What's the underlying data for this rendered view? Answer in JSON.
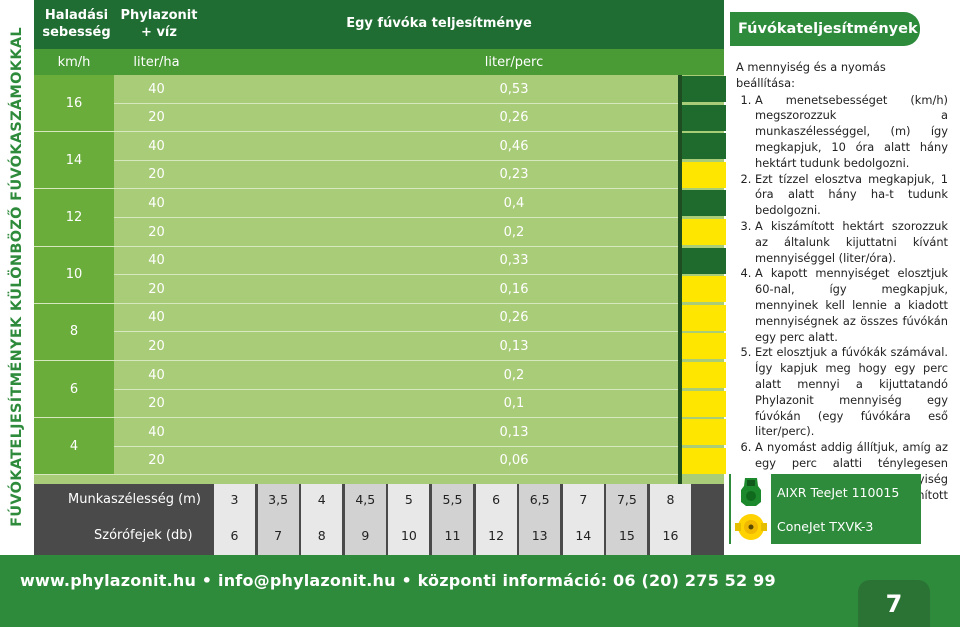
{
  "side_title": "FÚVÓKATELJESÍTMÉNYEK KÜLÖNBÖZŐ FÚVÓKASZÁMOKKAL",
  "header": {
    "col1": "Haladási sebesség",
    "col2": "Phylazonit + víz",
    "col3": "Egy fúvóka teljesítménye"
  },
  "units": {
    "speed": "km/h",
    "rate": "liter/ha",
    "flow": "liter/perc"
  },
  "groups": [
    {
      "speed": "16",
      "rows": [
        {
          "rate": "40",
          "flow": "0,53"
        },
        {
          "rate": "20",
          "flow": "0,26"
        }
      ]
    },
    {
      "speed": "14",
      "rows": [
        {
          "rate": "40",
          "flow": "0,46"
        },
        {
          "rate": "20",
          "flow": "0,23"
        }
      ]
    },
    {
      "speed": "12",
      "rows": [
        {
          "rate": "40",
          "flow": "0,4"
        },
        {
          "rate": "20",
          "flow": "0,2"
        }
      ]
    },
    {
      "speed": "10",
      "rows": [
        {
          "rate": "40",
          "flow": "0,33"
        },
        {
          "rate": "20",
          "flow": "0,16"
        }
      ]
    },
    {
      "speed": "8",
      "rows": [
        {
          "rate": "40",
          "flow": "0,26"
        },
        {
          "rate": "20",
          "flow": "0,13"
        }
      ]
    },
    {
      "speed": "6",
      "rows": [
        {
          "rate": "40",
          "flow": "0,2"
        },
        {
          "rate": "20",
          "flow": "0,1"
        }
      ]
    },
    {
      "speed": "4",
      "rows": [
        {
          "rate": "40",
          "flow": "0,13"
        },
        {
          "rate": "20",
          "flow": "0,06"
        }
      ]
    }
  ],
  "nozzle_indicator": [
    "green",
    "green",
    "green",
    "yellow",
    "green",
    "yellow",
    "green",
    "yellow",
    "yellow",
    "yellow",
    "yellow",
    "yellow",
    "yellow",
    "yellow"
  ],
  "colors": {
    "green_nozzle": "#1f6b2e",
    "yellow_nozzle": "#ffe600",
    "brand_green": "#2e8b3b"
  },
  "munkaszelesseg": {
    "label": "Munkaszélesség (m)",
    "values": [
      "3",
      "3,5",
      "4",
      "4,5",
      "5",
      "5,5",
      "6",
      "6,5",
      "7",
      "7,5",
      "8"
    ]
  },
  "szorofejek": {
    "label": "Szórófejek (db)",
    "values": [
      "6",
      "7",
      "8",
      "9",
      "10",
      "11",
      "12",
      "13",
      "14",
      "15",
      "16"
    ]
  },
  "right": {
    "title": "Fúvókateljesítmények",
    "intro": "A mennyiség és a nyomás beállítása:",
    "steps": [
      "A menetsebességet (km/h) megszorozzuk a munkaszélességgel, (m) így megkapjuk, 10 óra alatt hány hektárt tudunk bedolgozni.",
      "Ezt tízzel elosztva megkapjuk, 1 óra alatt hány ha-t tudunk bedolgozni.",
      "A kiszámított hektárt szorozzuk az általunk kijuttatni kívánt mennyiséggel (liter/óra).",
      "A kapott mennyiséget elosztjuk 60-nal, így megkapjuk, mennyinek kell lennie a kiadott mennyiségnek az összes fúvókán egy perc alatt.",
      "Ezt elosztjuk a fúvókák számával. Így kapjuk meg hogy egy perc alatt mennyi a kijuttatandó Phylazonit mennyiség egy fúvókán (egy fúvókára eső liter/perc).",
      "A nyomást addig állítjuk, amíg az egy perc alatti ténylegesen kijuttatott mennyiség megegyezik a kiszámított mennyiséggel."
    ],
    "nozzles": [
      {
        "label": "AIXR TeeJet 110015",
        "icon": "green-nozzle-icon"
      },
      {
        "label": "ConeJet TXVK-3",
        "icon": "yellow-nozzle-icon"
      }
    ]
  },
  "footer": {
    "text": "www.phylazonit.hu • info@phylazonit.hu • központi információ: 06 (20) 275 52 99",
    "page": "7"
  }
}
